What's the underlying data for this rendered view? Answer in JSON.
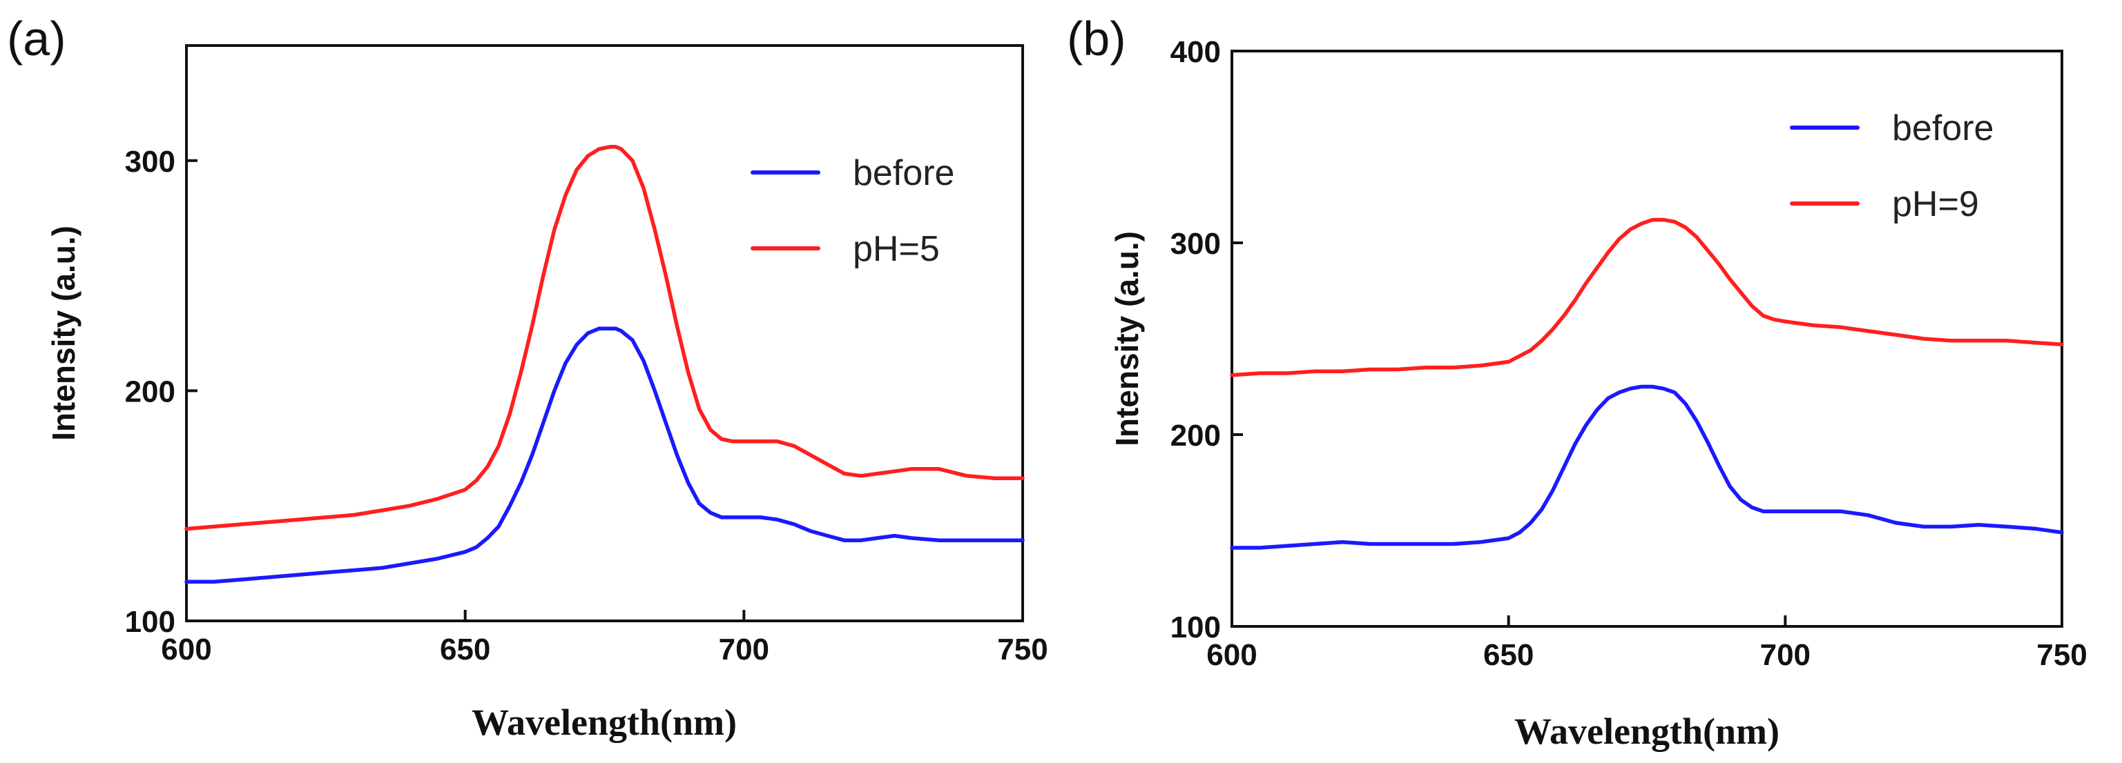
{
  "chart_data": [
    {
      "type": "line",
      "panel_label": "(a)",
      "title": "",
      "xlabel": "Wavelength(nm)",
      "ylabel": "Intensity (a.u.)",
      "xlim": [
        600,
        750
      ],
      "ylim": [
        100,
        350
      ],
      "x_ticks": [
        600,
        650,
        700,
        750
      ],
      "y_ticks": [
        100,
        200,
        300
      ],
      "grid": false,
      "legend_position": "top-right",
      "series": [
        {
          "name": "before",
          "color": "#1a1aff",
          "x": [
            600,
            605,
            610,
            615,
            620,
            625,
            630,
            635,
            640,
            645,
            650,
            652,
            654,
            656,
            658,
            660,
            662,
            664,
            666,
            668,
            670,
            672,
            674,
            676,
            677,
            678,
            680,
            682,
            684,
            686,
            688,
            690,
            692,
            694,
            696,
            698,
            700,
            703,
            706,
            709,
            712,
            715,
            718,
            721,
            724,
            727,
            730,
            735,
            740,
            745,
            750
          ],
          "y": [
            117,
            117,
            118,
            119,
            120,
            121,
            122,
            123,
            125,
            127,
            130,
            132,
            136,
            141,
            150,
            160,
            172,
            186,
            200,
            212,
            220,
            225,
            227,
            227,
            227,
            226,
            222,
            213,
            200,
            186,
            172,
            160,
            151,
            147,
            145,
            145,
            145,
            145,
            144,
            142,
            139,
            137,
            135,
            135,
            136,
            137,
            136,
            135,
            135,
            135,
            135
          ]
        },
        {
          "name": "pH=5",
          "color": "#ff1f1f",
          "x": [
            600,
            605,
            610,
            615,
            620,
            625,
            630,
            635,
            640,
            645,
            650,
            652,
            654,
            656,
            658,
            660,
            662,
            664,
            666,
            668,
            670,
            672,
            674,
            676,
            677,
            678,
            680,
            682,
            684,
            686,
            688,
            690,
            692,
            694,
            696,
            698,
            700,
            703,
            706,
            709,
            712,
            715,
            718,
            721,
            724,
            727,
            730,
            735,
            740,
            745,
            750
          ],
          "y": [
            140,
            141,
            142,
            143,
            144,
            145,
            146,
            148,
            150,
            153,
            157,
            161,
            167,
            176,
            190,
            208,
            228,
            250,
            270,
            285,
            296,
            302,
            305,
            306,
            306,
            305,
            300,
            288,
            270,
            250,
            228,
            208,
            192,
            183,
            179,
            178,
            178,
            178,
            178,
            176,
            172,
            168,
            164,
            163,
            164,
            165,
            166,
            166,
            163,
            162,
            162
          ]
        }
      ]
    },
    {
      "type": "line",
      "panel_label": "(b)",
      "title": "",
      "xlabel": "Wavelength(nm)",
      "ylabel": "Intensity (a.u.)",
      "xlim": [
        600,
        750
      ],
      "ylim": [
        100,
        400
      ],
      "x_ticks": [
        600,
        650,
        700,
        750
      ],
      "y_ticks": [
        100,
        200,
        300,
        400
      ],
      "grid": false,
      "legend_position": "top-right",
      "series": [
        {
          "name": "before",
          "color": "#1a1aff",
          "x": [
            600,
            605,
            610,
            615,
            620,
            625,
            630,
            635,
            640,
            645,
            650,
            652,
            654,
            656,
            658,
            660,
            662,
            664,
            666,
            668,
            670,
            672,
            674,
            676,
            678,
            680,
            682,
            684,
            686,
            688,
            690,
            692,
            694,
            696,
            698,
            700,
            705,
            710,
            715,
            720,
            725,
            730,
            735,
            740,
            745,
            750
          ],
          "y": [
            141,
            141,
            142,
            143,
            144,
            143,
            143,
            143,
            143,
            144,
            146,
            149,
            154,
            161,
            171,
            183,
            195,
            205,
            213,
            219,
            222,
            224,
            225,
            225,
            224,
            222,
            216,
            207,
            196,
            184,
            173,
            166,
            162,
            160,
            160,
            160,
            160,
            160,
            158,
            154,
            152,
            152,
            153,
            152,
            151,
            149
          ]
        },
        {
          "name": "pH=9",
          "color": "#ff1f1f",
          "x": [
            600,
            605,
            610,
            615,
            620,
            625,
            630,
            635,
            640,
            645,
            650,
            652,
            654,
            656,
            658,
            660,
            662,
            664,
            666,
            668,
            670,
            672,
            674,
            676,
            678,
            680,
            682,
            684,
            686,
            688,
            690,
            692,
            694,
            696,
            698,
            700,
            705,
            710,
            715,
            720,
            725,
            730,
            735,
            740,
            745,
            750
          ],
          "y": [
            231,
            232,
            232,
            233,
            233,
            234,
            234,
            235,
            235,
            236,
            238,
            241,
            244,
            249,
            255,
            262,
            270,
            279,
            287,
            295,
            302,
            307,
            310,
            312,
            312,
            311,
            308,
            303,
            296,
            289,
            281,
            274,
            267,
            262,
            260,
            259,
            257,
            256,
            254,
            252,
            250,
            249,
            249,
            249,
            248,
            247
          ]
        }
      ]
    }
  ]
}
